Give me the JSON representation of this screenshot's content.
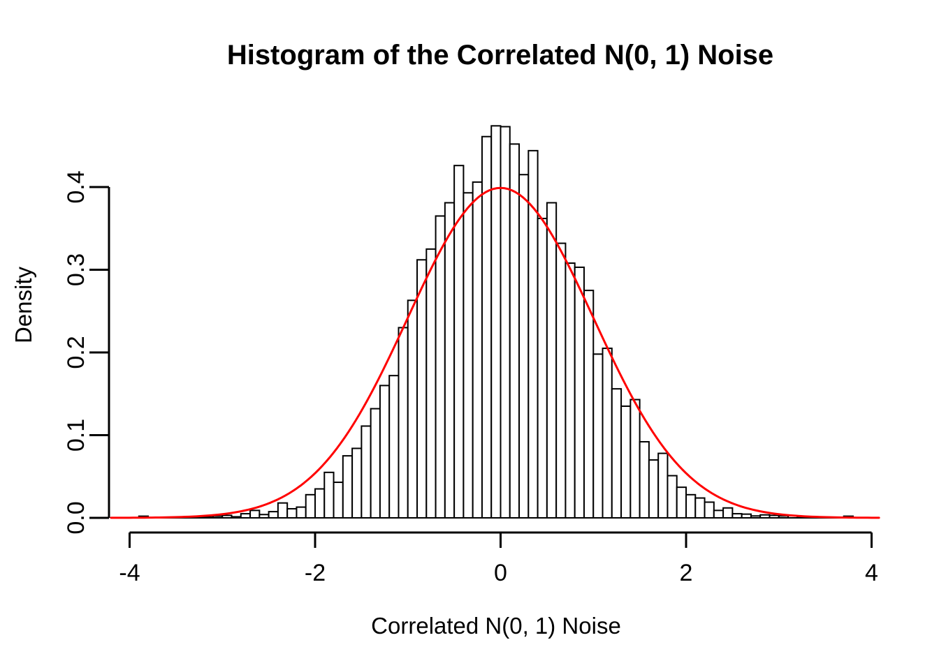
{
  "title": "Histogram of the Correlated N(0, 1) Noise",
  "colors": {
    "curve": "#FF0000",
    "bar_fill": "#FFFFFF",
    "bar_stroke": "#000000",
    "axis": "#000000",
    "background": "#FFFFFF"
  },
  "chart_data": {
    "type": "bar",
    "subtype": "histogram",
    "title": "Histogram of the Correlated N(0, 1) Noise",
    "xlabel": "Correlated N(0, 1) Noise",
    "ylabel": "Density",
    "x_ticks": [
      "-4",
      "-2",
      "0",
      "2",
      "4"
    ],
    "x_tick_values": [
      -4,
      -2,
      0,
      2,
      4
    ],
    "y_ticks": [
      "0.0",
      "0.1",
      "0.2",
      "0.3",
      "0.4"
    ],
    "y_tick_values": [
      0.0,
      0.1,
      0.2,
      0.3,
      0.4
    ],
    "xlim": [
      -4.21,
      4.11
    ],
    "ylim": [
      0,
      0.48
    ],
    "grid": "off",
    "legend": "none",
    "bin_start": -3.9,
    "bin_width": 0.1,
    "densities": [
      0.002,
      0,
      0,
      0,
      0.0005,
      0.0005,
      0.001,
      0.001,
      0.002,
      0.003,
      0.0013,
      0.005,
      0.009,
      0.004,
      0.0075,
      0.018,
      0.011,
      0.013,
      0.028,
      0.035,
      0.055,
      0.043,
      0.075,
      0.084,
      0.111,
      0.132,
      0.16,
      0.172,
      0.23,
      0.263,
      0.312,
      0.325,
      0.365,
      0.381,
      0.426,
      0.393,
      0.406,
      0.461,
      0.474,
      0.473,
      0.452,
      0.415,
      0.444,
      0.362,
      0.381,
      0.332,
      0.308,
      0.303,
      0.275,
      0.198,
      0.205,
      0.156,
      0.135,
      0.143,
      0.092,
      0.07,
      0.078,
      0.051,
      0.037,
      0.028,
      0.024,
      0.019,
      0.009,
      0.012,
      0.005,
      0.0045,
      0.0023,
      0.0036,
      0.003,
      0.0023,
      0.0025,
      0.001,
      0,
      0,
      0,
      0,
      0.002
    ],
    "curve": {
      "name": "standard normal density",
      "distribution": "N(0, 1)",
      "mean": 0,
      "sd": 1,
      "peak_density": 0.3989,
      "color": "#FF0000",
      "x_range": [
        -4.2,
        4.1
      ]
    }
  }
}
